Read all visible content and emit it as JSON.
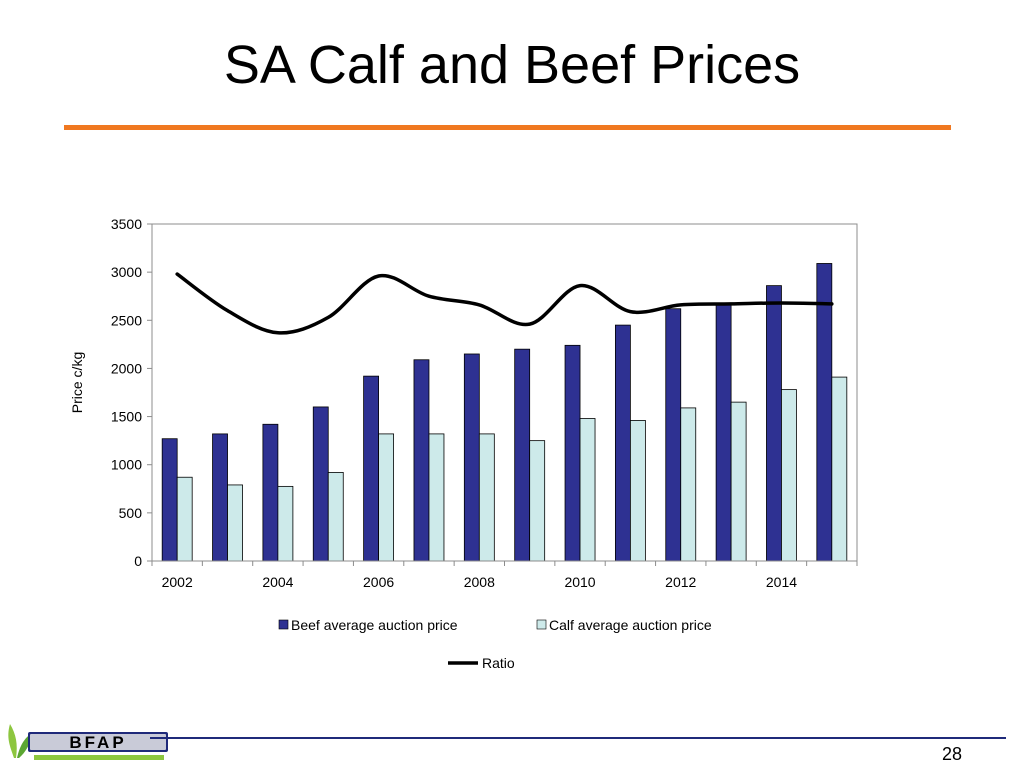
{
  "slide": {
    "title": "SA Calf and Beef Prices",
    "page_number": "28",
    "accent_color": "#F07820",
    "footer_rule_color": "#1F2A7A"
  },
  "logo": {
    "text": "BFAP",
    "icon": "bfap-logo"
  },
  "chart_data": {
    "type": "bar",
    "x": [
      2002,
      2003,
      2004,
      2005,
      2006,
      2007,
      2008,
      2009,
      2010,
      2011,
      2012,
      2013,
      2014,
      2015
    ],
    "x_ticks": [
      "2002",
      "2004",
      "2006",
      "2008",
      "2010",
      "2012",
      "2014"
    ],
    "ylabel": "Price c/kg",
    "ylim": [
      0,
      3500
    ],
    "yticks": [
      0,
      500,
      1000,
      1500,
      2000,
      2500,
      3000,
      3500
    ],
    "grid": false,
    "legend_placement": "bottom",
    "series": [
      {
        "name": "Beef average auction price",
        "kind": "bar",
        "color": "#2E3192",
        "values": [
          1270,
          1320,
          1420,
          1600,
          1920,
          2090,
          2150,
          2200,
          2240,
          2450,
          2620,
          2670,
          2860,
          3090
        ]
      },
      {
        "name": "Calf average auction price",
        "kind": "bar",
        "color": "#CDEAEA",
        "values": [
          870,
          790,
          775,
          920,
          1320,
          1320,
          1320,
          1250,
          1480,
          1460,
          1590,
          1650,
          1780,
          1910
        ]
      },
      {
        "name": "Ratio",
        "kind": "line",
        "color": "#000000",
        "values": [
          2980,
          2600,
          2370,
          2530,
          2960,
          2750,
          2660,
          2460,
          2860,
          2590,
          2660,
          2670,
          2680,
          2670
        ]
      }
    ]
  }
}
